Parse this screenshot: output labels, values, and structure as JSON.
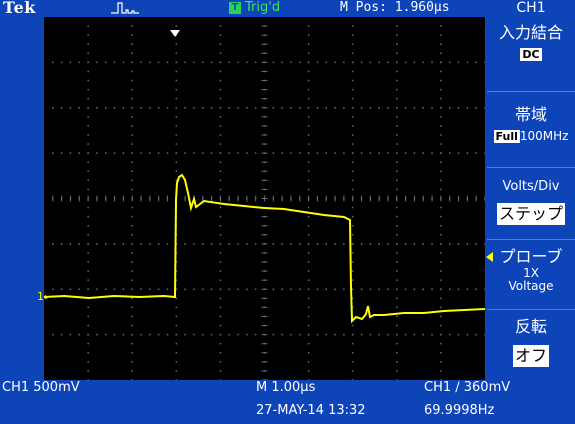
{
  "header": {
    "brand": "Tek",
    "acquisition_icon": "pulse-icon",
    "trigger_badge": "T",
    "trigger_status": "Trig'd",
    "horizontal_position": "M Pos: 1.960µs",
    "channel_title": "CH1"
  },
  "menu": {
    "items": [
      {
        "label": "入力結合",
        "value": "DC"
      },
      {
        "label": "帯域",
        "chip": "Full",
        "value": "100MHz"
      },
      {
        "label": "Volts/Div",
        "value": "ステップ"
      },
      {
        "label": "プローブ",
        "value_line1": "1X",
        "value_line2": "Voltage"
      },
      {
        "label": "反転",
        "value": "オフ"
      }
    ]
  },
  "readouts": {
    "ch1_scale": "CH1  500mV",
    "timebase": "M 1.00µs",
    "trigger": "CH1 ∕  360mV",
    "date": "27-MAY-14 13:32",
    "frequency": "69.9998Hz"
  },
  "markers": {
    "ch1_ground": "1▸"
  },
  "colors": {
    "frame": "#0d44b8",
    "trace": "#ffff00",
    "trigger_status": "#39e65f",
    "graticule": "#6a6a6a"
  }
}
